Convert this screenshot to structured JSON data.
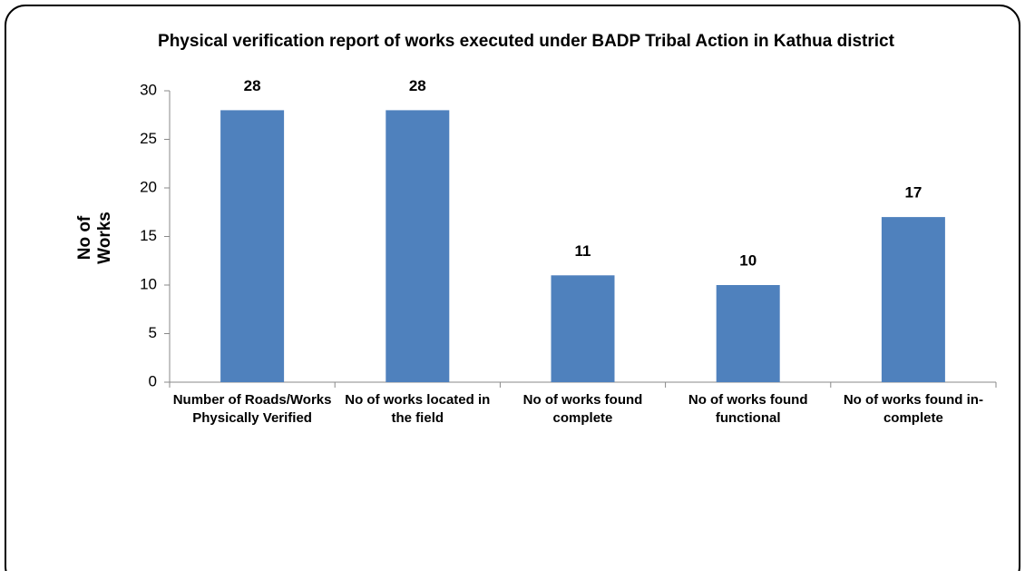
{
  "chart_data": {
    "type": "bar",
    "title": "Physical verification report of works executed under BADP Tribal Action in Kathua district",
    "y_label": "No of Works",
    "categories": [
      "Number of Roads/Works Physically Verified",
      "No of works located in the field",
      "No of works found complete",
      "No of works found functional",
      "No of works found in-complete"
    ],
    "values": [
      28,
      28,
      11,
      10,
      17
    ],
    "color": "#4f81bd",
    "ylim": [
      0,
      30
    ],
    "yticks": [
      0,
      5,
      10,
      15,
      20,
      25,
      30
    ],
    "grid": false
  }
}
